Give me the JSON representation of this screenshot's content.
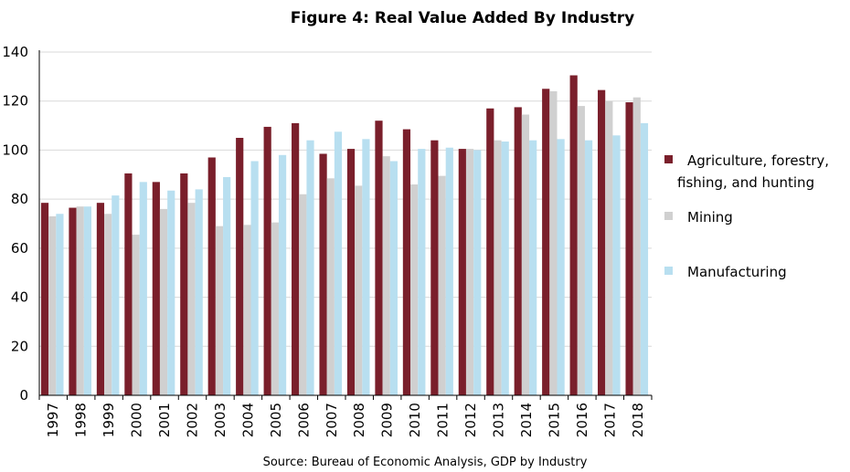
{
  "chart_data": {
    "type": "bar",
    "title": "Figure 4: Real Value Added By Industry",
    "source": "Source: Bureau of Economic Analysis, GDP by Industry",
    "xlabel": "",
    "ylabel": "",
    "ylim": [
      0,
      140
    ],
    "yticks": [
      0,
      20,
      40,
      60,
      80,
      100,
      120,
      140
    ],
    "grid": true,
    "legend_position": "right",
    "categories": [
      "1997",
      "1998",
      "1999",
      "2000",
      "2001",
      "2002",
      "2003",
      "2004",
      "2005",
      "2006",
      "2007",
      "2008",
      "2009",
      "2010",
      "2011",
      "2012",
      "2013",
      "2014",
      "2015",
      "2016",
      "2017",
      "2018"
    ],
    "series": [
      {
        "name": "Agriculture, forestry, fishing, and hunting",
        "legend_lines": [
          "Agriculture, forestry,",
          "fishing, and hunting"
        ],
        "color": "#7a1f2b",
        "values": [
          78.5,
          76.5,
          78.5,
          90.5,
          87,
          90.5,
          97,
          105,
          109.5,
          111,
          98.5,
          100.5,
          112,
          108.5,
          104,
          100.5,
          117,
          117.5,
          125,
          130.5,
          124.5,
          119.5
        ]
      },
      {
        "name": "Mining",
        "legend_lines": [
          "Mining"
        ],
        "color": "#d0d0d0",
        "values": [
          73,
          77,
          74,
          65.5,
          76,
          78.5,
          69,
          69.5,
          70.5,
          82,
          88.5,
          85.5,
          97.5,
          86,
          89.5,
          100.5,
          104,
          114.5,
          124,
          118,
          120,
          121.5
        ]
      },
      {
        "name": "Manufacturing",
        "legend_lines": [
          "Manufacturing"
        ],
        "color": "#b8dff0",
        "values": [
          74,
          77,
          81.5,
          87,
          83.5,
          84,
          89,
          95.5,
          98,
          104,
          107.5,
          104.5,
          95.5,
          100.5,
          101,
          100,
          103.5,
          104,
          104.5,
          104,
          106,
          111
        ]
      }
    ]
  }
}
